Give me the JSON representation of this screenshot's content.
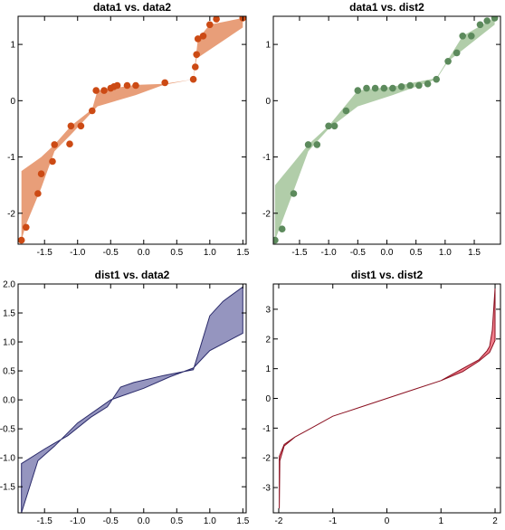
{
  "figure": {
    "layout": "2x2 grid"
  },
  "chart_data": [
    {
      "type": "scatter",
      "title": "data1 vs. data2",
      "color_points": "#cc4a14",
      "color_band": "#e6946a",
      "xlim": [
        -1.9,
        1.55
      ],
      "ylim": [
        -2.55,
        1.5
      ],
      "xticks": [
        -1.5,
        -1.0,
        -0.5,
        0.0,
        0.5,
        1.0,
        1.5
      ],
      "xtick_labels": [
        "-1.5",
        "-1.0",
        "-0.5",
        "0.0",
        "0.5",
        "1.0",
        "1.5"
      ],
      "yticks": [
        -2,
        -1,
        0,
        1
      ],
      "ytick_labels": [
        "-2",
        "-1",
        "0",
        "1"
      ],
      "points": [
        [
          -1.85,
          -2.48
        ],
        [
          -1.78,
          -2.25
        ],
        [
          -1.6,
          -1.65
        ],
        [
          -1.55,
          -1.3
        ],
        [
          -1.38,
          -1.08
        ],
        [
          -1.35,
          -0.78
        ],
        [
          -1.12,
          -0.77
        ],
        [
          -1.1,
          -0.45
        ],
        [
          -0.95,
          -0.45
        ],
        [
          -0.78,
          -0.18
        ],
        [
          -0.72,
          0.18
        ],
        [
          -0.6,
          0.18
        ],
        [
          -0.5,
          0.22
        ],
        [
          -0.45,
          0.25
        ],
        [
          -0.4,
          0.27
        ],
        [
          -0.25,
          0.27
        ],
        [
          -0.12,
          0.27
        ],
        [
          0.32,
          0.32
        ],
        [
          0.75,
          0.38
        ],
        [
          0.78,
          0.6
        ],
        [
          0.8,
          0.82
        ],
        [
          0.82,
          1.1
        ],
        [
          0.9,
          1.15
        ],
        [
          1.0,
          1.35
        ],
        [
          1.1,
          1.45
        ],
        [
          1.5,
          1.47
        ]
      ],
      "band_upper": [
        [
          -1.85,
          -1.25
        ],
        [
          -1.55,
          -1.0
        ],
        [
          -1.35,
          -0.78
        ],
        [
          -1.1,
          -0.45
        ],
        [
          -0.78,
          -0.15
        ],
        [
          -0.7,
          0.18
        ],
        [
          -0.12,
          0.28
        ],
        [
          0.3,
          0.3
        ],
        [
          0.75,
          0.38
        ],
        [
          0.82,
          1.1
        ],
        [
          1.0,
          1.35
        ],
        [
          1.5,
          1.47
        ]
      ],
      "band_lower": [
        [
          1.5,
          1.3
        ],
        [
          0.8,
          0.75
        ],
        [
          0.75,
          0.38
        ],
        [
          0.3,
          0.28
        ],
        [
          -0.12,
          0.1
        ],
        [
          -0.7,
          -0.1
        ],
        [
          -1.1,
          -0.6
        ],
        [
          -1.35,
          -0.9
        ],
        [
          -1.55,
          -1.55
        ],
        [
          -1.78,
          -2.2
        ],
        [
          -1.85,
          -2.48
        ]
      ]
    },
    {
      "type": "scatter",
      "title": "data1 vs. dist2",
      "color_points": "#5c8a5c",
      "color_band": "#a8c8a0",
      "xlim": [
        -1.95,
        1.95
      ],
      "ylim": [
        -2.55,
        1.5
      ],
      "xticks": [
        -1.5,
        -1.0,
        -0.5,
        0.0,
        0.5,
        1.0,
        1.5
      ],
      "xtick_labels": [
        "-1.5",
        "-1.0",
        "-0.5",
        "0.0",
        "0.5",
        "1.0",
        "1.5"
      ],
      "yticks": [
        -2,
        -1,
        0,
        1
      ],
      "ytick_labels": [
        "-2",
        "-1",
        "0",
        "1"
      ],
      "points": [
        [
          -1.92,
          -2.48
        ],
        [
          -1.8,
          -2.28
        ],
        [
          -1.6,
          -1.65
        ],
        [
          -1.35,
          -0.78
        ],
        [
          -1.2,
          -0.78
        ],
        [
          -1.0,
          -0.45
        ],
        [
          -0.9,
          -0.45
        ],
        [
          -0.7,
          -0.18
        ],
        [
          -0.5,
          0.18
        ],
        [
          -0.35,
          0.22
        ],
        [
          -0.2,
          0.22
        ],
        [
          -0.05,
          0.22
        ],
        [
          0.1,
          0.22
        ],
        [
          0.25,
          0.25
        ],
        [
          0.4,
          0.27
        ],
        [
          0.55,
          0.27
        ],
        [
          0.7,
          0.3
        ],
        [
          0.85,
          0.38
        ],
        [
          1.05,
          0.7
        ],
        [
          1.2,
          0.85
        ],
        [
          1.3,
          1.15
        ],
        [
          1.45,
          1.15
        ],
        [
          1.6,
          1.35
        ],
        [
          1.72,
          1.42
        ],
        [
          1.85,
          1.47
        ]
      ],
      "band_upper": [
        [
          -1.92,
          -1.5
        ],
        [
          -1.6,
          -1.1
        ],
        [
          -1.35,
          -0.78
        ],
        [
          -1.0,
          -0.45
        ],
        [
          -0.5,
          0.18
        ],
        [
          0.1,
          0.25
        ],
        [
          0.85,
          0.4
        ],
        [
          1.3,
          1.15
        ],
        [
          1.85,
          1.47
        ]
      ],
      "band_lower": [
        [
          1.85,
          1.35
        ],
        [
          1.3,
          0.9
        ],
        [
          1.05,
          0.7
        ],
        [
          0.85,
          0.38
        ],
        [
          0.1,
          0.1
        ],
        [
          -0.5,
          -0.1
        ],
        [
          -1.0,
          -0.5
        ],
        [
          -1.35,
          -0.9
        ],
        [
          -1.6,
          -1.6
        ],
        [
          -1.92,
          -2.48
        ]
      ]
    },
    {
      "type": "area",
      "title": "dist1 vs. data2",
      "color_band": "#8a8ab8",
      "color_edge": "#2a2a6a",
      "xlim": [
        -1.9,
        1.55
      ],
      "ylim": [
        -1.95,
        2.0
      ],
      "xticks": [
        -1.5,
        -1.0,
        -0.5,
        0.0,
        0.5,
        1.0,
        1.5
      ],
      "xtick_labels": [
        "-1.5",
        "-1.0",
        "-0.5",
        "0.0",
        "0.5",
        "1.0",
        "1.5"
      ],
      "yticks": [
        -1.5,
        -1.0,
        -0.5,
        0.0,
        0.5,
        1.0,
        1.5,
        2.0
      ],
      "ytick_labels": [
        "-1.5",
        "-1.0",
        "-0.5",
        "0.0",
        "0.5",
        "1.0",
        "1.5",
        "2.0"
      ],
      "band_upper": [
        [
          -1.85,
          -1.1
        ],
        [
          -1.5,
          -0.85
        ],
        [
          -1.35,
          -0.75
        ],
        [
          -1.15,
          -0.62
        ],
        [
          -0.8,
          -0.3
        ],
        [
          -0.55,
          -0.12
        ],
        [
          -0.35,
          0.22
        ],
        [
          -0.15,
          0.3
        ],
        [
          0.3,
          0.42
        ],
        [
          0.75,
          0.52
        ],
        [
          0.8,
          0.7
        ],
        [
          1.0,
          1.45
        ],
        [
          1.2,
          1.7
        ],
        [
          1.5,
          1.95
        ]
      ],
      "band_lower": [
        [
          1.5,
          1.15
        ],
        [
          1.0,
          0.85
        ],
        [
          0.75,
          0.55
        ],
        [
          0.4,
          0.4
        ],
        [
          0.0,
          0.2
        ],
        [
          -0.5,
          0.0
        ],
        [
          -1.0,
          -0.4
        ],
        [
          -1.35,
          -0.8
        ],
        [
          -1.6,
          -1.05
        ],
        [
          -1.85,
          -1.95
        ]
      ]
    },
    {
      "type": "area",
      "title": "dist1 vs. dist2",
      "color_band": "#f07080",
      "color_edge": "#8a1020",
      "xlim": [
        -2.1,
        2.1
      ],
      "ylim": [
        -3.85,
        3.85
      ],
      "xticks": [
        -2,
        -1,
        0,
        1,
        2
      ],
      "xtick_labels": [
        "-2",
        "-1",
        "0",
        "1",
        "2"
      ],
      "yticks": [
        -3,
        -2,
        -1,
        0,
        1,
        2,
        3
      ],
      "ytick_labels": [
        "-3",
        "-2",
        "-1",
        "0",
        "1",
        "2",
        "3"
      ],
      "band_upper": [
        [
          -1.99,
          -3.7
        ],
        [
          -1.98,
          -2.1
        ],
        [
          -1.9,
          -1.6
        ],
        [
          -1.7,
          -1.3
        ],
        [
          -1.4,
          -1.0
        ],
        [
          -1.0,
          -0.6
        ],
        [
          -0.5,
          -0.3
        ],
        [
          0.0,
          0.0
        ],
        [
          0.5,
          0.3
        ],
        [
          1.0,
          0.6
        ],
        [
          1.4,
          1.0
        ],
        [
          1.7,
          1.3
        ],
        [
          1.85,
          1.6
        ],
        [
          1.9,
          1.75
        ],
        [
          1.95,
          2.3
        ],
        [
          2.0,
          3.7
        ]
      ],
      "band_lower": [
        [
          2.0,
          1.95
        ],
        [
          1.9,
          1.55
        ],
        [
          1.7,
          1.25
        ],
        [
          1.4,
          0.9
        ],
        [
          1.0,
          0.6
        ],
        [
          0.5,
          0.3
        ],
        [
          0.0,
          0.0
        ],
        [
          -0.5,
          -0.3
        ],
        [
          -1.0,
          -0.6
        ],
        [
          -1.4,
          -1.0
        ],
        [
          -1.7,
          -1.3
        ],
        [
          -1.9,
          -1.55
        ],
        [
          -1.99,
          -1.95
        ]
      ]
    }
  ]
}
